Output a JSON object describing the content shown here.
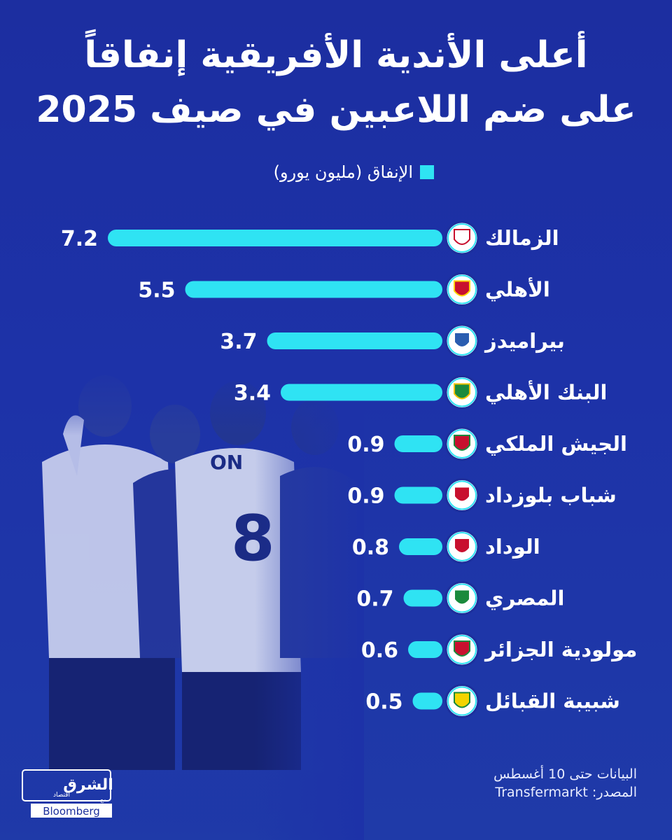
{
  "title": {
    "line1": "أعلى الأندية الأفريقية إنفاقاً",
    "line2": "على ضم اللاعبين في صيف 2025"
  },
  "legend": {
    "label": "الإنفاق (مليون يورو)"
  },
  "footer": {
    "note": "البيانات حتى 10 أغسطس",
    "source": "المصدر: Transfermarkt"
  },
  "logo": {
    "brand": "الشرق",
    "sub": "اقتصاد",
    "with": "مع",
    "partner": "Bloomberg"
  },
  "colors": {
    "background": "#1c2f9c",
    "bar": "#2fe3f3",
    "text": "#ffffff"
  },
  "chart_data": {
    "type": "bar",
    "orientation": "horizontal",
    "categories": [
      "الزمالك",
      "الأهلي",
      "بيراميدز",
      "البنك الأهلي",
      "الجيش الملكي",
      "شباب بلوزداد",
      "الوداد",
      "المصري",
      "مولودية الجزائر",
      "شبيبة القبائل"
    ],
    "series": [
      {
        "name": "الإنفاق (مليون يورو)",
        "values": [
          7.2,
          5.5,
          3.7,
          3.4,
          0.9,
          0.9,
          0.8,
          0.7,
          0.6,
          0.5
        ]
      }
    ],
    "value_labels": [
      "7.2",
      "5.5",
      "3.7",
      "3.4",
      "0.9",
      "0.9",
      "0.8",
      "0.7",
      "0.6",
      "0.5"
    ],
    "club_logos": [
      "zamalek-crest",
      "al-ahly-crest",
      "pyramids-crest",
      "national-bank-crest",
      "far-rabat-crest",
      "cr-belouizdad-crest",
      "wydad-crest",
      "al-masry-crest",
      "mc-alger-crest",
      "js-kabylie-crest"
    ],
    "title": "أعلى الأندية الأفريقية إنفاقاً على ضم اللاعبين في صيف 2025",
    "xlabel": "",
    "ylabel": "",
    "grid": false,
    "legend_position": "top"
  }
}
